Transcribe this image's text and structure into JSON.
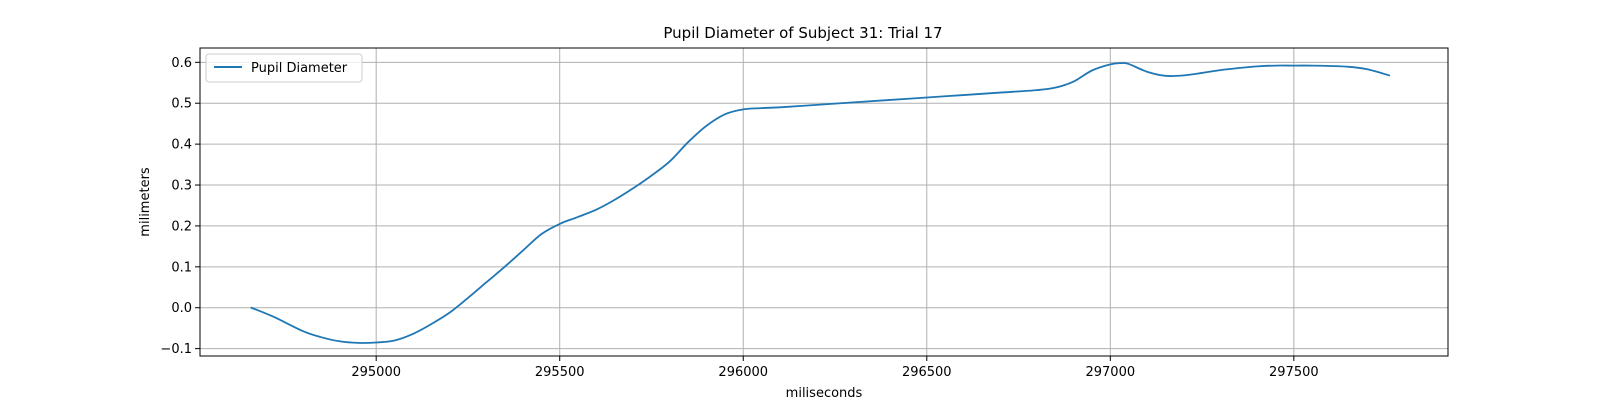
{
  "chart_data": {
    "type": "line",
    "title": "Pupil Diameter of Subject 31: Trial 17",
    "xlabel": "miliseconds",
    "ylabel": "milimeters",
    "xlim": [
      294520,
      297920
    ],
    "ylim": [
      -0.118,
      0.635
    ],
    "xticks": [
      295000,
      295500,
      296000,
      296500,
      297000,
      297500
    ],
    "yticks": [
      -0.1,
      0.0,
      0.1,
      0.2,
      0.3,
      0.4,
      0.5,
      0.6
    ],
    "grid": true,
    "legend": "upper-left",
    "colors": {
      "series": "#1f77b4",
      "grid": "#b0b0b0"
    },
    "series": [
      {
        "name": "Pupil Diameter",
        "x": [
          294660,
          294720,
          294800,
          294850,
          294900,
          294950,
          295000,
          295050,
          295100,
          295150,
          295200,
          295250,
          295300,
          295350,
          295400,
          295450,
          295500,
          295550,
          295600,
          295650,
          295700,
          295750,
          295800,
          295850,
          295900,
          295950,
          296000,
          296050,
          296100,
          296200,
          296300,
          296400,
          296500,
          296600,
          296700,
          296800,
          296850,
          296900,
          296950,
          297000,
          297030,
          297050,
          297100,
          297150,
          297200,
          297250,
          297300,
          297350,
          297400,
          297450,
          297500,
          297550,
          297600,
          297650,
          297700,
          297760
        ],
        "y": [
          0.0,
          -0.022,
          -0.057,
          -0.072,
          -0.082,
          -0.086,
          -0.085,
          -0.08,
          -0.064,
          -0.04,
          -0.012,
          0.024,
          0.062,
          0.1,
          0.14,
          0.18,
          0.205,
          0.222,
          0.24,
          0.264,
          0.292,
          0.323,
          0.358,
          0.405,
          0.445,
          0.473,
          0.485,
          0.488,
          0.49,
          0.496,
          0.502,
          0.508,
          0.514,
          0.52,
          0.526,
          0.532,
          0.538,
          0.553,
          0.58,
          0.595,
          0.598,
          0.596,
          0.577,
          0.567,
          0.568,
          0.574,
          0.581,
          0.586,
          0.59,
          0.592,
          0.592,
          0.592,
          0.591,
          0.589,
          0.583,
          0.568
        ]
      }
    ]
  }
}
